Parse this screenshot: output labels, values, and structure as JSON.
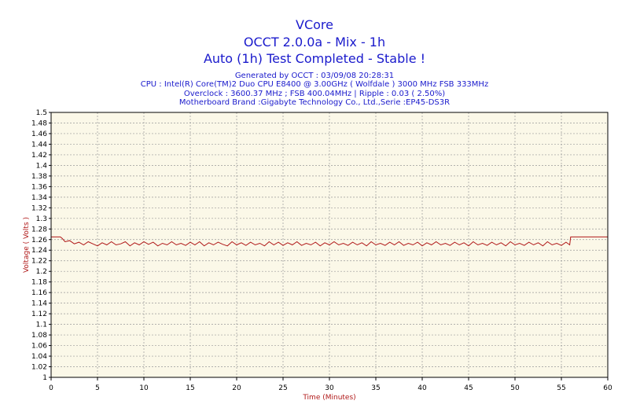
{
  "header": {
    "title1": "VCore",
    "title2": "OCCT 2.0.0a - Mix - 1h",
    "title3": "Auto (1h) Test Completed - Stable !",
    "info1": "Generated by OCCT : 03/09/08 20:28:31",
    "info2": "CPU : Intel(R) Core(TM)2 Duo CPU E8400 @ 3.00GHz ( Wolfdale ) 3000 MHz FSB 333MHz",
    "info3": "Overclock : 3600.37 MHz ; FSB 400.04MHz | Ripple : 0.03 ( 2.50%)",
    "info4": "Motherboard Brand :Gigabyte Technology Co., Ltd.,Serie :EP45-DS3R"
  },
  "colors": {
    "plot_background": "#fbf8e8",
    "line": "#b01818",
    "title_text": "#1a1acc",
    "grid": "#999999"
  },
  "chart_data": {
    "type": "line",
    "title": "VCore",
    "xlabel": "Time (Minutes)",
    "ylabel": "Voltage ( Volts )",
    "xlim": [
      0,
      60
    ],
    "ylim": [
      1.0,
      1.5
    ],
    "xticks": [
      0,
      5,
      10,
      15,
      20,
      25,
      30,
      35,
      40,
      45,
      50,
      55,
      60
    ],
    "yticks": [
      1,
      1.02,
      1.04,
      1.06,
      1.08,
      1.1,
      1.12,
      1.14,
      1.16,
      1.18,
      1.2,
      1.22,
      1.24,
      1.26,
      1.28,
      1.3,
      1.32,
      1.34,
      1.36,
      1.38,
      1.4,
      1.42,
      1.44,
      1.46,
      1.48,
      1.5
    ],
    "grid": true,
    "legend": "none",
    "series": [
      {
        "color": "#b01818",
        "x": [
          0,
          1.0,
          1.2,
          1.5,
          2.0,
          2.5,
          3.0,
          3.5,
          4.0,
          4.5,
          5.0,
          5.5,
          6.0,
          6.5,
          7.0,
          7.5,
          8.0,
          8.5,
          9.0,
          9.5,
          10.0,
          10.5,
          11.0,
          11.5,
          12.0,
          12.5,
          13.0,
          13.5,
          14.0,
          14.5,
          15.0,
          15.5,
          16.0,
          16.5,
          17.0,
          17.5,
          18.0,
          18.5,
          19.0,
          19.5,
          20.0,
          20.5,
          21.0,
          21.5,
          22.0,
          22.5,
          23.0,
          23.5,
          24.0,
          24.5,
          25.0,
          25.5,
          26.0,
          26.5,
          27.0,
          27.5,
          28.0,
          28.5,
          29.0,
          29.5,
          30.0,
          30.5,
          31.0,
          31.5,
          32.0,
          32.5,
          33.0,
          33.5,
          34.0,
          34.5,
          35.0,
          35.5,
          36.0,
          36.5,
          37.0,
          37.5,
          38.0,
          38.5,
          39.0,
          39.5,
          40.0,
          40.5,
          41.0,
          41.5,
          42.0,
          42.5,
          43.0,
          43.5,
          44.0,
          44.5,
          45.0,
          45.5,
          46.0,
          46.5,
          47.0,
          47.5,
          48.0,
          48.5,
          49.0,
          49.5,
          50.0,
          50.5,
          51.0,
          51.5,
          52.0,
          52.5,
          53.0,
          53.5,
          54.0,
          54.5,
          55.0,
          55.5,
          55.9,
          56.0,
          60
        ],
        "y": [
          1.265,
          1.265,
          1.262,
          1.256,
          1.258,
          1.252,
          1.255,
          1.25,
          1.256,
          1.252,
          1.248,
          1.254,
          1.25,
          1.256,
          1.25,
          1.252,
          1.256,
          1.248,
          1.254,
          1.25,
          1.256,
          1.251,
          1.255,
          1.248,
          1.253,
          1.25,
          1.256,
          1.25,
          1.253,
          1.249,
          1.255,
          1.25,
          1.256,
          1.248,
          1.254,
          1.25,
          1.255,
          1.251,
          1.248,
          1.256,
          1.25,
          1.254,
          1.249,
          1.255,
          1.25,
          1.253,
          1.248,
          1.256,
          1.25,
          1.255,
          1.249,
          1.254,
          1.25,
          1.256,
          1.249,
          1.253,
          1.25,
          1.255,
          1.248,
          1.254,
          1.25,
          1.256,
          1.25,
          1.253,
          1.249,
          1.255,
          1.25,
          1.254,
          1.248,
          1.256,
          1.25,
          1.253,
          1.249,
          1.255,
          1.25,
          1.256,
          1.249,
          1.253,
          1.25,
          1.255,
          1.248,
          1.254,
          1.25,
          1.256,
          1.25,
          1.253,
          1.249,
          1.255,
          1.25,
          1.254,
          1.248,
          1.256,
          1.25,
          1.253,
          1.249,
          1.255,
          1.25,
          1.254,
          1.248,
          1.256,
          1.25,
          1.253,
          1.249,
          1.255,
          1.25,
          1.254,
          1.248,
          1.256,
          1.25,
          1.253,
          1.249,
          1.255,
          1.25,
          1.265,
          1.265
        ]
      }
    ]
  }
}
